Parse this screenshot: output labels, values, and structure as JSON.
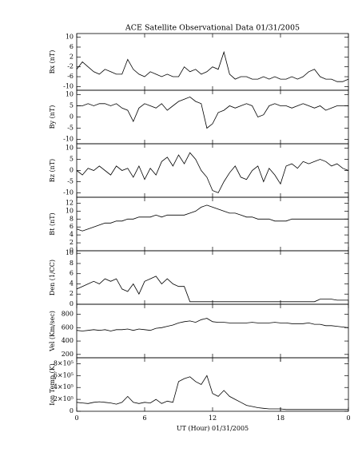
{
  "chart_data": [
    {
      "type": "line",
      "title": "ACE Satellite Observational Data   01/31/2005",
      "ylabel": "Bx (nT)",
      "color": "#000000",
      "x": [
        0,
        0.5,
        1,
        1.5,
        2,
        2.5,
        3,
        3.5,
        4,
        4.5,
        5,
        5.5,
        6,
        6.5,
        7,
        7.5,
        8,
        8.5,
        9,
        9.5,
        10,
        10.5,
        11,
        11.5,
        12,
        12.5,
        13,
        13.5,
        14,
        14.5,
        15,
        15.5,
        16,
        16.5,
        17,
        17.5,
        18,
        18.5,
        19,
        19.5,
        20,
        20.5,
        21,
        21.5,
        22,
        22.5,
        23,
        23.5,
        24
      ],
      "values": [
        -3,
        0,
        -2,
        -4,
        -5,
        -3,
        -4,
        -5,
        -5,
        1,
        -3,
        -5,
        -6,
        -4,
        -5,
        -6,
        -5,
        -6,
        -6,
        -2,
        -4,
        -3,
        -5,
        -4,
        -2,
        -3,
        4,
        -5,
        -7,
        -6,
        -6,
        -7,
        -7,
        -6,
        -7,
        -6,
        -7,
        -7,
        -6,
        -7,
        -6,
        -4,
        -3,
        -6,
        -7,
        -7,
        -8,
        -8,
        -7
      ],
      "xlim": [
        0,
        24
      ],
      "xticks": [
        0,
        6,
        12,
        18,
        24
      ],
      "ylim": [
        -11.5,
        11.5
      ],
      "yticks": [
        10,
        6,
        2,
        -2,
        -6,
        -10
      ]
    },
    {
      "type": "line",
      "ylabel": "By (nT)",
      "color": "#000000",
      "x": [
        0,
        0.5,
        1,
        1.5,
        2,
        2.5,
        3,
        3.5,
        4,
        4.5,
        5,
        5.5,
        6,
        6.5,
        7,
        7.5,
        8,
        8.5,
        9,
        9.5,
        10,
        10.5,
        11,
        11.5,
        12,
        12.5,
        13,
        13.5,
        14,
        14.5,
        15,
        15.5,
        16,
        16.5,
        17,
        17.5,
        18,
        18.5,
        19,
        19.5,
        20,
        20.5,
        21,
        21.5,
        22,
        22.5,
        23,
        23.5,
        24
      ],
      "values": [
        5,
        5,
        6,
        5,
        6,
        6,
        5,
        6,
        4,
        3,
        -2,
        4,
        6,
        5,
        4,
        6,
        3,
        5,
        7,
        8,
        9,
        7,
        6,
        -5,
        -3,
        2,
        3,
        5,
        4,
        5,
        6,
        5,
        0,
        1,
        5,
        6,
        5,
        5,
        4,
        5,
        6,
        5,
        4,
        5,
        3,
        4,
        5,
        5,
        5
      ],
      "xlim": [
        0,
        24
      ],
      "xticks": [
        0,
        6,
        12,
        18,
        24
      ],
      "ylim": [
        -12,
        12
      ],
      "yticks": [
        10,
        5,
        0,
        -5,
        -10
      ]
    },
    {
      "type": "line",
      "ylabel": "Bz (nT)",
      "color": "#000000",
      "x": [
        0,
        0.5,
        1,
        1.5,
        2,
        2.5,
        3,
        3.5,
        4,
        4.5,
        5,
        5.5,
        6,
        6.5,
        7,
        7.5,
        8,
        8.5,
        9,
        9.5,
        10,
        10.5,
        11,
        11.5,
        12,
        12.5,
        13,
        13.5,
        14,
        14.5,
        15,
        15.5,
        16,
        16.5,
        17,
        17.5,
        18,
        18.5,
        19,
        19.5,
        20,
        20.5,
        21,
        21.5,
        22,
        22.5,
        23,
        23.5,
        24
      ],
      "values": [
        0,
        -2,
        1,
        0,
        2,
        0,
        -2,
        2,
        0,
        1,
        -3,
        2,
        -4,
        1,
        -2,
        4,
        6,
        2,
        7,
        3,
        8,
        5,
        0,
        -3,
        -9,
        -10,
        -5,
        -1,
        2,
        -3,
        -4,
        0,
        2,
        -5,
        1,
        -2,
        -6,
        2,
        3,
        1,
        4,
        3,
        4,
        5,
        4,
        2,
        3,
        1,
        0
      ],
      "xlim": [
        0,
        24
      ],
      "xticks": [
        0,
        6,
        12,
        18,
        24
      ],
      "ylim": [
        -12,
        12
      ],
      "yticks": [
        10,
        5,
        0,
        -5,
        -10
      ]
    },
    {
      "type": "line",
      "ylabel": "Bt (nT)",
      "color": "#000000",
      "x": [
        0,
        0.5,
        1,
        1.5,
        2,
        2.5,
        3,
        3.5,
        4,
        4.5,
        5,
        5.5,
        6,
        6.5,
        7,
        7.5,
        8,
        8.5,
        9,
        9.5,
        10,
        10.5,
        11,
        11.5,
        12,
        12.5,
        13,
        13.5,
        14,
        14.5,
        15,
        15.5,
        16,
        16.5,
        17,
        17.5,
        18,
        18.5,
        19,
        19.5,
        20,
        20.5,
        21,
        21.5,
        22,
        22.5,
        23,
        23.5,
        24
      ],
      "values": [
        5.5,
        5,
        5.5,
        6,
        6.5,
        7,
        7,
        7.5,
        7.5,
        8,
        8,
        8.5,
        8.5,
        8.5,
        9,
        8.5,
        9,
        9,
        9,
        9,
        9.5,
        10,
        11,
        11.5,
        11,
        10.5,
        10,
        9.5,
        9.5,
        9,
        8.5,
        8.5,
        8,
        8,
        8,
        7.5,
        7.5,
        7.5,
        8,
        8,
        8,
        8,
        8,
        8,
        8,
        8,
        8,
        8,
        8
      ],
      "xlim": [
        0,
        24
      ],
      "xticks": [
        0,
        6,
        12,
        18,
        24
      ],
      "ylim": [
        0,
        13.5
      ],
      "yticks": [
        12,
        10,
        8,
        6,
        4,
        2,
        0
      ]
    },
    {
      "type": "line",
      "ylabel": "Den (1/CC)",
      "color": "#000000",
      "x": [
        0,
        0.5,
        1,
        1.5,
        2,
        2.5,
        3,
        3.5,
        4,
        4.5,
        5,
        5.5,
        6,
        6.5,
        7,
        7.5,
        8,
        8.5,
        9,
        9.5,
        10,
        10.5,
        11,
        11.5,
        12,
        12.5,
        13,
        13.5,
        14,
        14.5,
        15,
        15.5,
        16,
        16.5,
        17,
        17.5,
        18,
        18.5,
        19,
        19.5,
        20,
        20.5,
        21,
        21.5,
        22,
        22.5,
        23,
        23.5,
        24
      ],
      "values": [
        3,
        3.5,
        4,
        4.5,
        4,
        5,
        4.5,
        5,
        3,
        2.5,
        4,
        2,
        4.5,
        5,
        5.5,
        4,
        5,
        4,
        3.5,
        3.5,
        0.5,
        0.5,
        0.5,
        0.5,
        0.5,
        0.5,
        0.5,
        0.5,
        0.5,
        0.5,
        0.5,
        0.5,
        0.5,
        0.5,
        0.5,
        0.5,
        0.5,
        0.5,
        0.5,
        0.5,
        0.5,
        0.5,
        0.5,
        1,
        1,
        1,
        0.8,
        0.8,
        0.8
      ],
      "xlim": [
        0,
        24
      ],
      "xticks": [
        0,
        6,
        12,
        18,
        24
      ],
      "ylim": [
        0,
        10.5
      ],
      "yticks": [
        10,
        8,
        6,
        4,
        2,
        0
      ]
    },
    {
      "type": "line",
      "ylabel": "Vel (Km/sec)",
      "color": "#000000",
      "x": [
        0,
        0.5,
        1,
        1.5,
        2,
        2.5,
        3,
        3.5,
        4,
        4.5,
        5,
        5.5,
        6,
        6.5,
        7,
        7.5,
        8,
        8.5,
        9,
        9.5,
        10,
        10.5,
        11,
        11.5,
        12,
        12.5,
        13,
        13.5,
        14,
        14.5,
        15,
        15.5,
        16,
        16.5,
        17,
        17.5,
        18,
        18.5,
        19,
        19.5,
        20,
        20.5,
        21,
        21.5,
        22,
        22.5,
        23,
        23.5,
        24
      ],
      "values": [
        560,
        550,
        560,
        570,
        560,
        570,
        550,
        570,
        570,
        580,
        560,
        580,
        570,
        560,
        590,
        600,
        620,
        640,
        670,
        690,
        700,
        680,
        720,
        740,
        690,
        680,
        680,
        670,
        670,
        670,
        670,
        680,
        670,
        670,
        670,
        680,
        670,
        670,
        660,
        660,
        660,
        670,
        650,
        650,
        630,
        630,
        620,
        610,
        600
      ],
      "xlim": [
        0,
        24
      ],
      "xticks": [
        0,
        6,
        12,
        18,
        24
      ],
      "ylim": [
        150,
        950
      ],
      "yticks": [
        800,
        600,
        400,
        200
      ]
    },
    {
      "type": "line",
      "ylabel": "Ion Temp (K)",
      "xlabel": "UT (Hour)   01/31/2005",
      "color": "#000000",
      "x": [
        0,
        0.5,
        1,
        1.5,
        2,
        2.5,
        3,
        3.5,
        4,
        4.5,
        5,
        5.5,
        6,
        6.5,
        7,
        7.5,
        8,
        8.5,
        9,
        9.5,
        10,
        10.5,
        11,
        11.5,
        12,
        12.5,
        13,
        13.5,
        14,
        14.5,
        15,
        15.5,
        16,
        16.5,
        17,
        17.5,
        18,
        18.5,
        19,
        19.5,
        20,
        20.5,
        21,
        21.5,
        22,
        22.5,
        23,
        23.5,
        24
      ],
      "values": [
        150000,
        140000,
        130000,
        150000,
        160000,
        150000,
        140000,
        120000,
        150000,
        250000,
        150000,
        130000,
        150000,
        140000,
        200000,
        130000,
        170000,
        150000,
        500000,
        550000,
        580000,
        500000,
        450000,
        600000,
        300000,
        250000,
        350000,
        250000,
        200000,
        150000,
        100000,
        80000,
        60000,
        50000,
        40000,
        40000,
        40000,
        30000,
        30000,
        30000,
        30000,
        30000,
        30000,
        30000,
        30000,
        30000,
        30000,
        30000,
        30000
      ],
      "xlim": [
        0,
        24
      ],
      "xticks": [
        0,
        6,
        12,
        18,
        18.0001,
        {
          "value": 24,
          "label": "0"
        }
      ],
      "ylim": [
        0,
        900000
      ],
      "yticks": [
        {
          "value": 800000,
          "label": "8×10⁵"
        },
        {
          "value": 600000,
          "label": "6×10⁵"
        },
        {
          "value": 400000,
          "label": "4×10⁵"
        },
        {
          "value": 200000,
          "label": "2×10⁵"
        },
        0
      ]
    }
  ]
}
